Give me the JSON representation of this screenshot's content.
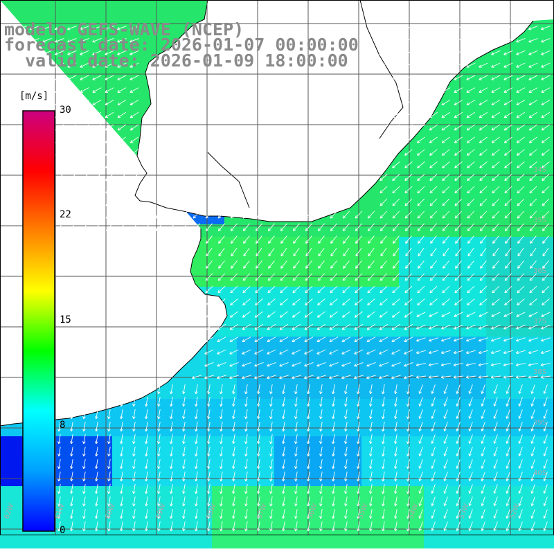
{
  "header": {
    "model": "modelo GEFS-WAVE (NCEP)",
    "forecast": "forecast date: 2026-01-07 00:00:00",
    "valid": "  valid date: 2026-01-09 18:00:00"
  },
  "colorbar": {
    "unit": "[m/s]",
    "ticks": [
      "30",
      "22",
      "15",
      "8",
      "0"
    ],
    "colors": [
      "#0000ff",
      "#00a0ff",
      "#00ffff",
      "#00ff00",
      "#ffff00",
      "#ff8000",
      "#ff0000",
      "#cc0080"
    ]
  },
  "map": {
    "variable": "wind speed and direction",
    "lat_labels": [
      "34S",
      "35S",
      "36S",
      "37S",
      "38S",
      "39S",
      "40S"
    ],
    "lon_labels": [
      "62W",
      "61W",
      "60W",
      "59W",
      "58W",
      "57W",
      "56W",
      "55W",
      "54W",
      "53W",
      "52W"
    ],
    "land_color": "#ffffff",
    "grid_color": "#555555",
    "arrow_color": "#ffffff"
  }
}
